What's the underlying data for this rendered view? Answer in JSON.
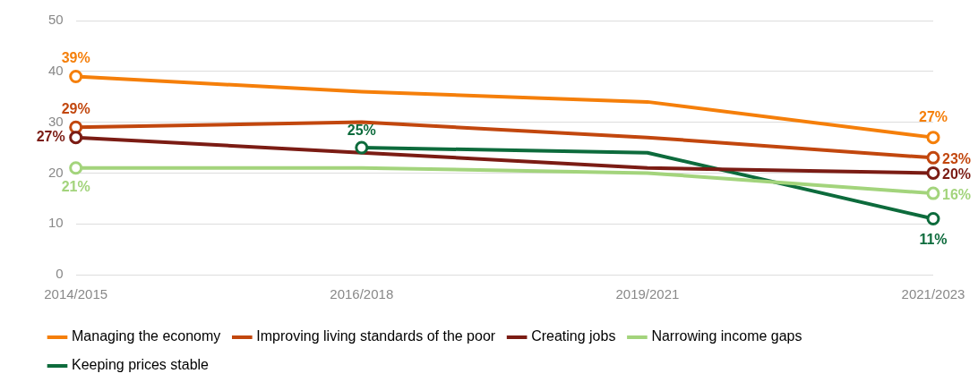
{
  "chart_data": {
    "type": "line",
    "categories": [
      "2014/2015",
      "2016/2018",
      "2019/2021",
      "2021/2023"
    ],
    "ylim": [
      0,
      50
    ],
    "yticks": [
      0,
      10,
      20,
      30,
      40,
      50
    ],
    "grid": "y",
    "legend": "bottom",
    "marker": "circle",
    "series": [
      {
        "name": "Managing the economy",
        "color": "#f57f0a",
        "values": [
          39,
          36,
          34,
          27
        ],
        "value_labels": [
          "39%",
          null,
          null,
          "27%"
        ]
      },
      {
        "name": "Improving living standards of the poor",
        "color": "#c2470e",
        "values": [
          29,
          30,
          27,
          23
        ],
        "value_labels": [
          "29%",
          null,
          null,
          "23%"
        ]
      },
      {
        "name": "Creating jobs",
        "color": "#7b1c14",
        "values": [
          27,
          24,
          21,
          20
        ],
        "value_labels": [
          "27%",
          null,
          null,
          "20%"
        ]
      },
      {
        "name": "Narrowing income gaps",
        "color": "#a3d47c",
        "values": [
          21,
          21,
          20,
          16
        ],
        "value_labels": [
          "21%",
          null,
          null,
          "16%"
        ]
      },
      {
        "name": "Keeping prices stable",
        "color": "#0d6b3c",
        "values": [
          null,
          25,
          24,
          11
        ],
        "value_labels": [
          null,
          "25%",
          null,
          "11%"
        ]
      }
    ]
  }
}
